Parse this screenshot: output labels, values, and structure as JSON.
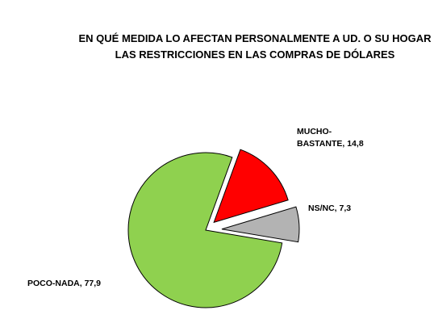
{
  "chart_data": {
    "type": "pie",
    "title": "EN QUÉ MEDIDA LO AFECTAN PERSONALMENTE A UD. O SU HOGAR LAS RESTRICCIONES EN LAS COMPRAS DE DÓLARES",
    "values": [
      14.8,
      7.3,
      77.9
    ],
    "value_labels": [
      "MUCHO-BASTANTE, 14,8",
      "NS/NC, 7,3",
      "POCO-NADA, 77,9"
    ],
    "colors": [
      "#ff0000",
      "#b3b3b3",
      "#8fd14f"
    ]
  }
}
